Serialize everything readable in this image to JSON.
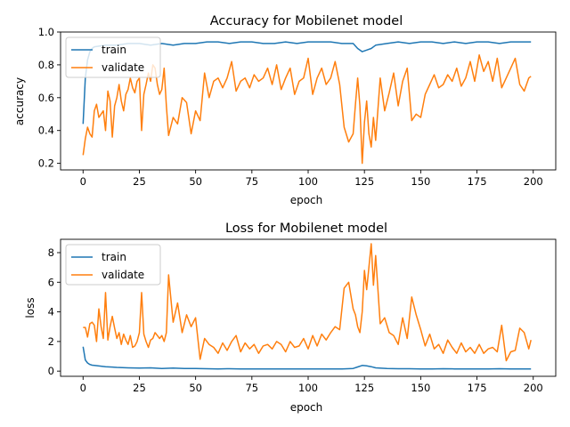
{
  "chart_data": [
    {
      "type": "line",
      "title": "Accuracy for Mobilenet model",
      "xlabel": "epoch",
      "ylabel": "accuracy",
      "xlim": [
        -10,
        210
      ],
      "ylim": [
        0.16,
        1.0
      ],
      "xticks": [
        0,
        25,
        50,
        75,
        100,
        125,
        150,
        175,
        200
      ],
      "yticks": [
        0.2,
        0.4,
        0.6,
        0.8,
        1.0
      ],
      "ytick_labels": [
        "0.2",
        "0.4",
        "0.6",
        "0.8",
        "1.0"
      ],
      "legend_position": "top-left",
      "grid": false,
      "series": [
        {
          "name": "train",
          "color": "#1f77b4",
          "x": [
            0,
            1,
            2,
            3,
            4,
            5,
            10,
            15,
            20,
            25,
            30,
            35,
            40,
            45,
            50,
            55,
            60,
            65,
            70,
            75,
            80,
            85,
            90,
            95,
            100,
            105,
            110,
            115,
            120,
            122,
            124,
            126,
            128,
            130,
            135,
            140,
            145,
            150,
            155,
            160,
            165,
            170,
            175,
            180,
            185,
            190,
            195,
            199
          ],
          "y": [
            0.44,
            0.72,
            0.83,
            0.88,
            0.9,
            0.91,
            0.92,
            0.92,
            0.93,
            0.93,
            0.92,
            0.93,
            0.92,
            0.93,
            0.93,
            0.94,
            0.94,
            0.93,
            0.94,
            0.94,
            0.93,
            0.93,
            0.94,
            0.93,
            0.94,
            0.94,
            0.94,
            0.93,
            0.93,
            0.9,
            0.88,
            0.89,
            0.9,
            0.92,
            0.93,
            0.94,
            0.93,
            0.94,
            0.94,
            0.93,
            0.94,
            0.93,
            0.94,
            0.94,
            0.93,
            0.94,
            0.94,
            0.94
          ]
        },
        {
          "name": "validate",
          "color": "#ff7f0e",
          "x": [
            0,
            1,
            2,
            3,
            4,
            5,
            6,
            7,
            8,
            9,
            10,
            11,
            12,
            13,
            14,
            15,
            16,
            17,
            18,
            19,
            20,
            21,
            22,
            23,
            24,
            25,
            26,
            27,
            28,
            29,
            30,
            31,
            32,
            33,
            34,
            35,
            36,
            37,
            38,
            40,
            42,
            44,
            46,
            48,
            50,
            52,
            54,
            56,
            58,
            60,
            62,
            64,
            66,
            68,
            70,
            72,
            74,
            76,
            78,
            80,
            82,
            84,
            86,
            88,
            90,
            92,
            94,
            96,
            98,
            100,
            102,
            104,
            106,
            108,
            110,
            112,
            114,
            116,
            118,
            120,
            121,
            122,
            123,
            124,
            125,
            126,
            127,
            128,
            129,
            130,
            132,
            134,
            136,
            138,
            140,
            142,
            144,
            146,
            148,
            150,
            152,
            154,
            156,
            158,
            160,
            162,
            164,
            166,
            168,
            170,
            172,
            174,
            176,
            178,
            180,
            182,
            184,
            186,
            188,
            190,
            192,
            194,
            196,
            198,
            199
          ],
          "y": [
            0.25,
            0.35,
            0.42,
            0.38,
            0.36,
            0.52,
            0.56,
            0.48,
            0.5,
            0.52,
            0.4,
            0.64,
            0.58,
            0.36,
            0.55,
            0.6,
            0.68,
            0.58,
            0.52,
            0.62,
            0.65,
            0.72,
            0.66,
            0.63,
            0.7,
            0.72,
            0.4,
            0.62,
            0.68,
            0.75,
            0.7,
            0.8,
            0.78,
            0.68,
            0.62,
            0.65,
            0.78,
            0.55,
            0.37,
            0.48,
            0.44,
            0.6,
            0.57,
            0.38,
            0.52,
            0.46,
            0.75,
            0.6,
            0.7,
            0.72,
            0.66,
            0.72,
            0.82,
            0.64,
            0.7,
            0.72,
            0.66,
            0.74,
            0.7,
            0.72,
            0.78,
            0.68,
            0.8,
            0.65,
            0.72,
            0.78,
            0.62,
            0.7,
            0.72,
            0.84,
            0.62,
            0.72,
            0.78,
            0.68,
            0.72,
            0.82,
            0.68,
            0.42,
            0.33,
            0.38,
            0.56,
            0.72,
            0.55,
            0.2,
            0.45,
            0.58,
            0.38,
            0.3,
            0.48,
            0.34,
            0.72,
            0.52,
            0.63,
            0.75,
            0.55,
            0.7,
            0.78,
            0.46,
            0.5,
            0.48,
            0.62,
            0.68,
            0.74,
            0.66,
            0.68,
            0.74,
            0.7,
            0.78,
            0.67,
            0.72,
            0.82,
            0.7,
            0.86,
            0.76,
            0.82,
            0.7,
            0.84,
            0.66,
            0.72,
            0.78,
            0.84,
            0.68,
            0.64,
            0.72,
            0.73
          ]
        }
      ]
    },
    {
      "type": "line",
      "title": "Loss for Mobilenet model",
      "xlabel": "epoch",
      "ylabel": "loss",
      "xlim": [
        -10,
        210
      ],
      "ylim": [
        -0.35,
        8.9
      ],
      "xticks": [
        0,
        25,
        50,
        75,
        100,
        125,
        150,
        175,
        200
      ],
      "yticks": [
        0,
        2,
        4,
        6,
        8
      ],
      "ytick_labels": [
        "0",
        "2",
        "4",
        "6",
        "8"
      ],
      "legend_position": "top-left",
      "grid": false,
      "series": [
        {
          "name": "train",
          "color": "#1f77b4",
          "x": [
            0,
            1,
            2,
            3,
            4,
            5,
            10,
            15,
            20,
            25,
            30,
            35,
            40,
            45,
            50,
            55,
            60,
            65,
            70,
            75,
            80,
            85,
            90,
            95,
            100,
            105,
            110,
            115,
            120,
            122,
            124,
            126,
            128,
            130,
            135,
            140,
            145,
            150,
            155,
            160,
            165,
            170,
            175,
            180,
            185,
            190,
            195,
            199
          ],
          "y": [
            1.65,
            0.75,
            0.55,
            0.45,
            0.4,
            0.38,
            0.3,
            0.25,
            0.22,
            0.2,
            0.22,
            0.18,
            0.2,
            0.18,
            0.18,
            0.16,
            0.15,
            0.16,
            0.15,
            0.14,
            0.15,
            0.15,
            0.14,
            0.15,
            0.14,
            0.14,
            0.14,
            0.15,
            0.18,
            0.28,
            0.38,
            0.35,
            0.3,
            0.22,
            0.18,
            0.16,
            0.16,
            0.15,
            0.15,
            0.16,
            0.15,
            0.15,
            0.15,
            0.15,
            0.16,
            0.15,
            0.15,
            0.15
          ]
        },
        {
          "name": "validate",
          "color": "#ff7f0e",
          "x": [
            0,
            1,
            2,
            3,
            4,
            5,
            6,
            7,
            8,
            9,
            10,
            11,
            12,
            13,
            14,
            15,
            16,
            17,
            18,
            19,
            20,
            21,
            22,
            23,
            24,
            25,
            26,
            27,
            28,
            29,
            30,
            31,
            32,
            33,
            34,
            35,
            36,
            37,
            38,
            40,
            42,
            44,
            46,
            48,
            50,
            52,
            54,
            56,
            58,
            60,
            62,
            64,
            66,
            68,
            70,
            72,
            74,
            76,
            78,
            80,
            82,
            84,
            86,
            88,
            90,
            92,
            94,
            96,
            98,
            100,
            102,
            104,
            106,
            108,
            110,
            112,
            114,
            116,
            118,
            120,
            121,
            122,
            123,
            124,
            125,
            126,
            127,
            128,
            129,
            130,
            132,
            134,
            136,
            138,
            140,
            142,
            144,
            146,
            148,
            150,
            152,
            154,
            156,
            158,
            160,
            162,
            164,
            166,
            168,
            170,
            172,
            174,
            176,
            178,
            180,
            182,
            184,
            186,
            188,
            190,
            192,
            194,
            196,
            198,
            199
          ],
          "y": [
            2.95,
            2.95,
            2.3,
            3.2,
            3.3,
            3.1,
            2.0,
            4.2,
            3.0,
            2.2,
            5.3,
            2.1,
            3.0,
            3.7,
            2.9,
            2.2,
            2.6,
            1.8,
            2.5,
            2.1,
            1.8,
            2.4,
            1.6,
            1.7,
            2.0,
            2.6,
            5.3,
            2.5,
            2.0,
            1.6,
            2.1,
            2.2,
            2.6,
            2.4,
            2.2,
            2.4,
            2.0,
            2.6,
            6.5,
            3.3,
            4.6,
            2.6,
            3.8,
            3.0,
            3.6,
            0.8,
            2.2,
            1.8,
            1.6,
            1.2,
            1.9,
            1.4,
            2.0,
            2.4,
            1.3,
            1.9,
            1.5,
            1.8,
            1.2,
            1.7,
            1.8,
            1.5,
            2.0,
            1.8,
            1.3,
            2.0,
            1.6,
            1.7,
            2.2,
            1.5,
            2.4,
            1.7,
            2.5,
            2.1,
            2.6,
            3.0,
            2.8,
            5.6,
            6.0,
            4.2,
            3.8,
            3.0,
            2.6,
            4.0,
            6.8,
            5.5,
            7.0,
            8.6,
            5.8,
            7.8,
            3.2,
            3.6,
            2.6,
            2.4,
            1.8,
            3.6,
            2.2,
            5.0,
            3.8,
            2.8,
            1.7,
            2.5,
            1.5,
            1.8,
            1.2,
            2.1,
            1.6,
            1.2,
            1.9,
            1.3,
            1.6,
            1.2,
            1.8,
            1.2,
            1.5,
            1.6,
            1.3,
            3.1,
            0.7,
            1.3,
            1.4,
            2.9,
            2.6,
            1.5,
            2.1
          ]
        }
      ]
    }
  ]
}
